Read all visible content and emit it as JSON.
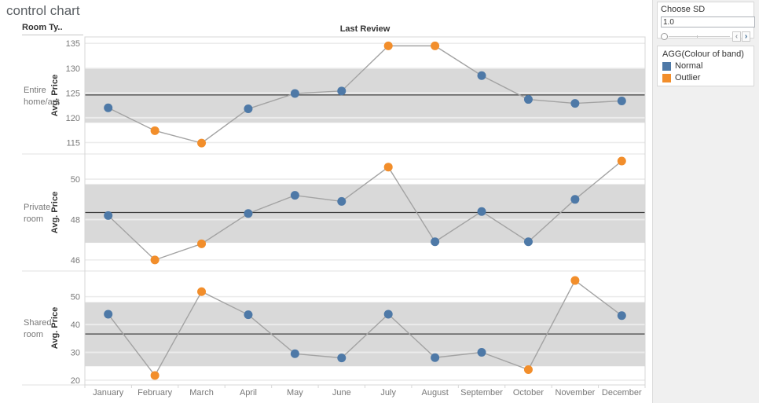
{
  "title": "control chart",
  "header": {
    "row_field": "Room Ty..",
    "col_axis_title": "Last Review"
  },
  "sidebar": {
    "param": {
      "title": "Choose SD",
      "value": "1.0",
      "decrement_icon": "‹",
      "increment_icon": "›"
    },
    "legend": {
      "title": "AGG(Colour of band)",
      "items": [
        {
          "label": "Normal",
          "color": "#4e79a7"
        },
        {
          "label": "Outlier",
          "color": "#f28e2b"
        }
      ]
    }
  },
  "colors": {
    "normal": "#4e79a7",
    "outlier": "#f28e2b",
    "band": "#d9d9d9",
    "connector_line": "#a3a3a3",
    "center_line": "#3f3f3f",
    "grid_outside": "#ececec",
    "grid_inside": "rgba(255,255,255,0.5)",
    "axis_text": "#787878",
    "border": "#d7d7d7"
  },
  "chart_data": {
    "type": "line",
    "title": "control chart",
    "x_axis_title": "Last Review",
    "categories": [
      "January",
      "February",
      "March",
      "April",
      "May",
      "June",
      "July",
      "August",
      "September",
      "October",
      "November",
      "December"
    ],
    "legend": {
      "title": "AGG(Colour of band)",
      "entries": [
        "Normal",
        "Outlier"
      ],
      "position": "right"
    },
    "panels": [
      {
        "row_label": "Entire home/apt",
        "ylabel": "Avg. Price",
        "yticks": [
          115,
          120,
          125,
          130,
          135
        ],
        "ydomain": [
          112.7,
          136.3
        ],
        "center": 124.6,
        "band": [
          119.0,
          130.1
        ],
        "values": [
          122.0,
          117.4,
          114.9,
          121.8,
          124.9,
          125.4,
          134.5,
          134.5,
          128.5,
          123.7,
          122.9,
          123.4
        ],
        "status": [
          "Normal",
          "Outlier",
          "Outlier",
          "Normal",
          "Normal",
          "Normal",
          "Outlier",
          "Outlier",
          "Normal",
          "Normal",
          "Normal",
          "Normal"
        ]
      },
      {
        "row_label": "Private room",
        "ylabel": "Avg. Price",
        "yticks": [
          46,
          48,
          50
        ],
        "ydomain": [
          45.45,
          51.25
        ],
        "center": 48.35,
        "band": [
          46.85,
          49.75
        ],
        "values": [
          48.2,
          46.0,
          46.8,
          48.3,
          49.2,
          48.9,
          50.6,
          46.9,
          48.4,
          46.9,
          49.0,
          50.9
        ],
        "status": [
          "Normal",
          "Outlier",
          "Outlier",
          "Normal",
          "Normal",
          "Normal",
          "Outlier",
          "Normal",
          "Normal",
          "Normal",
          "Normal",
          "Outlier"
        ]
      },
      {
        "row_label": "Shared room",
        "ylabel": "Avg. Price",
        "yticks": [
          20,
          30,
          40,
          50
        ],
        "ydomain": [
          18.3,
          59.2
        ],
        "center": 36.6,
        "band": [
          25.0,
          48.0
        ],
        "values": [
          43.7,
          21.7,
          51.8,
          43.5,
          29.5,
          28.0,
          43.7,
          28.1,
          30.0,
          23.8,
          55.8,
          43.2
        ],
        "status": [
          "Normal",
          "Outlier",
          "Outlier",
          "Normal",
          "Normal",
          "Normal",
          "Normal",
          "Normal",
          "Normal",
          "Outlier",
          "Outlier",
          "Normal"
        ]
      }
    ]
  }
}
